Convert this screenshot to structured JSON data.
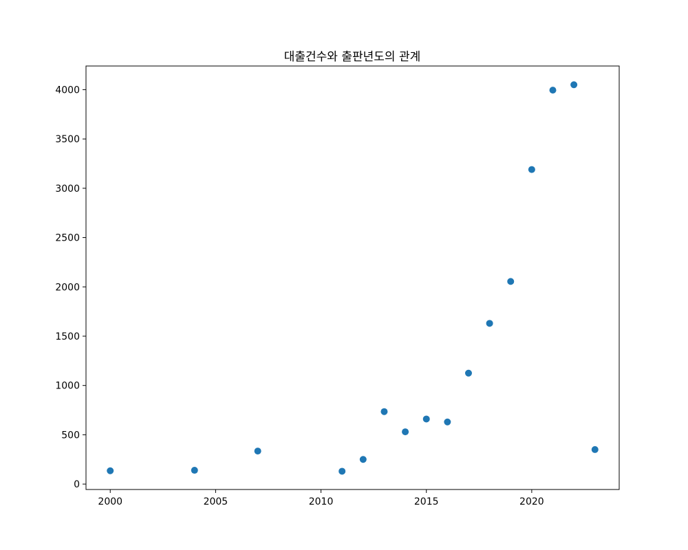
{
  "chart_data": {
    "type": "scatter",
    "title": "대출건수와 출판년도의 관계",
    "xlabel": "",
    "ylabel": "",
    "xlim": [
      1998.85,
      2024.15
    ],
    "ylim": [
      -55,
      4240
    ],
    "xticks": [
      2000,
      2005,
      2010,
      2015,
      2020
    ],
    "yticks": [
      0,
      500,
      1000,
      1500,
      2000,
      2500,
      3000,
      3500,
      4000
    ],
    "grid": false,
    "marker_color": "#1f77b4",
    "points": [
      {
        "x": 2000,
        "y": 135
      },
      {
        "x": 2004,
        "y": 140
      },
      {
        "x": 2007,
        "y": 335
      },
      {
        "x": 2011,
        "y": 130
      },
      {
        "x": 2012,
        "y": 250
      },
      {
        "x": 2013,
        "y": 735
      },
      {
        "x": 2014,
        "y": 530
      },
      {
        "x": 2015,
        "y": 660
      },
      {
        "x": 2016,
        "y": 630
      },
      {
        "x": 2017,
        "y": 1125
      },
      {
        "x": 2018,
        "y": 1630
      },
      {
        "x": 2019,
        "y": 2055
      },
      {
        "x": 2020,
        "y": 3190
      },
      {
        "x": 2021,
        "y": 3995
      },
      {
        "x": 2022,
        "y": 4050
      },
      {
        "x": 2023,
        "y": 350
      }
    ]
  }
}
